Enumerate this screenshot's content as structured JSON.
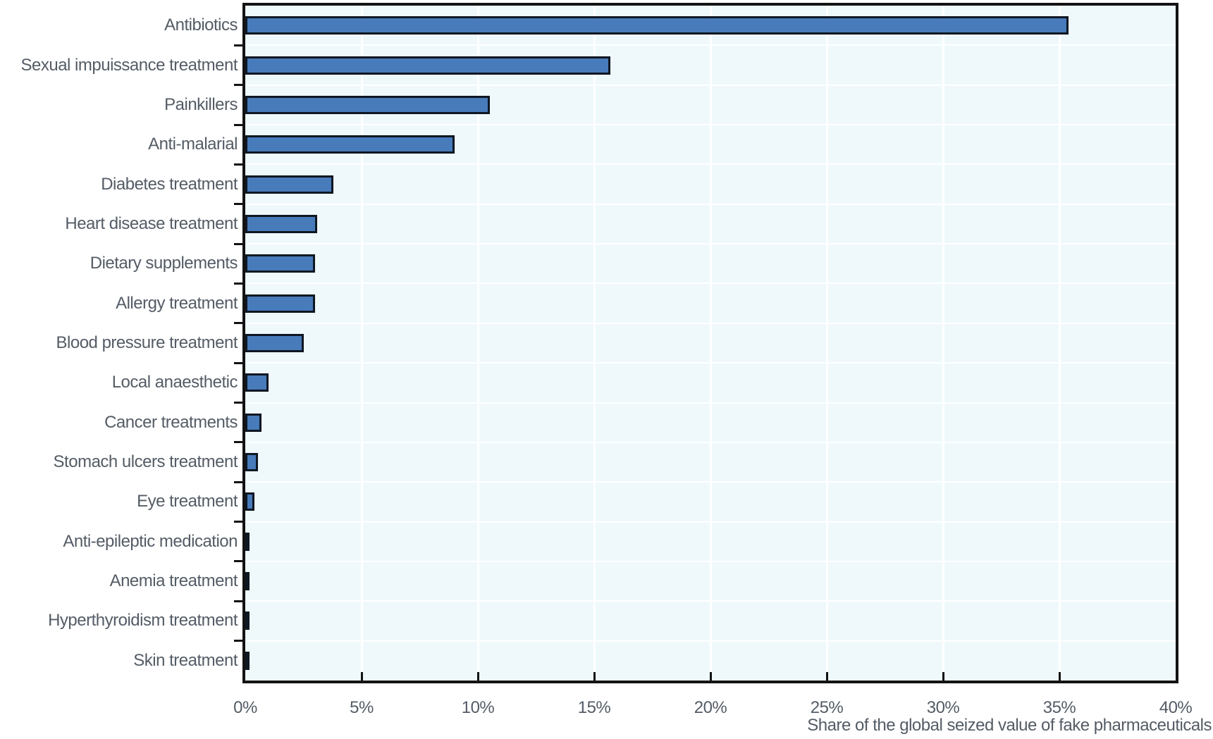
{
  "chart_data": {
    "type": "bar",
    "orientation": "horizontal",
    "title": "",
    "xlabel": "Share of the global seized value of fake pharmaceuticals",
    "ylabel": "",
    "xlim": [
      0,
      40
    ],
    "grid": true,
    "legend": false,
    "x_tick_step_percent": 5,
    "x_tick_labels": [
      "0%",
      "5%",
      "10%",
      "15%",
      "20%",
      "25%",
      "30%",
      "35%",
      "40%"
    ],
    "categories": [
      "Antibiotics",
      "Sexual impuissance treatment",
      "Painkillers",
      "Anti-malarial",
      "Diabetes treatment",
      "Heart disease treatment",
      "Dietary supplements",
      "Allergy treatment",
      "Blood pressure treatment",
      "Local anaesthetic",
      "Cancer treatments",
      "Stomach ulcers treatment",
      "Eye treatment",
      "Anti-epileptic medication",
      "Anemia treatment",
      "Hyperthyroidism treatment",
      "Skin treatment"
    ],
    "values": [
      35.4,
      15.7,
      10.5,
      9.0,
      3.8,
      3.1,
      3.0,
      3.0,
      2.5,
      1.0,
      0.7,
      0.55,
      0.4,
      0.15,
      0.15,
      0.12,
      0.12
    ],
    "unit": "%",
    "colors": {
      "bar_fill": "#477bba",
      "bar_border": "#0e1722",
      "plot_background": "#eff9fc",
      "gridline": "#ffffff",
      "axis": "#131313",
      "text": "#545c66"
    }
  }
}
